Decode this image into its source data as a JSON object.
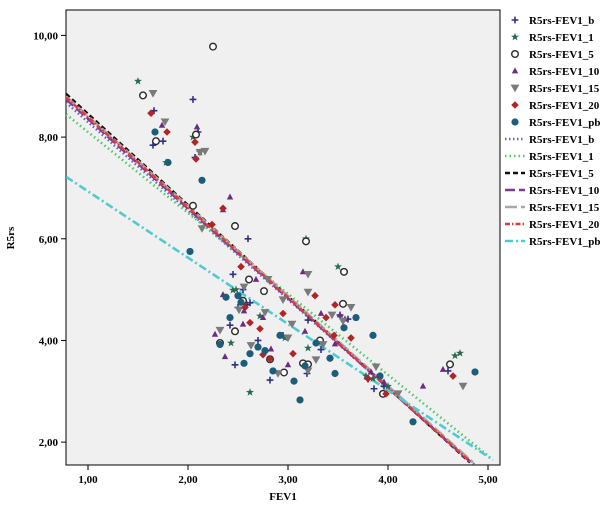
{
  "chart_data": {
    "type": "scatter",
    "xlabel": "FEV1",
    "ylabel": "R5rs",
    "xlim": [
      0.78,
      5.12
    ],
    "ylim": [
      1.55,
      10.5
    ],
    "x_ticks": [
      1,
      2,
      3,
      4,
      5
    ],
    "x_tick_labels": [
      "1,00",
      "2,00",
      "3,00",
      "4,00",
      "5,00"
    ],
    "y_ticks": [
      2,
      4,
      6,
      8,
      10
    ],
    "y_tick_labels": [
      "2,00",
      "4,00",
      "6,00",
      "8,00",
      "10,00"
    ],
    "grid": false,
    "legend_position": "right",
    "plot_background": "#f0f0f0",
    "series": [
      {
        "name": "R5rs-FEV1_b",
        "marker": "plus",
        "color": "#2e2f85",
        "points": [
          [
            1.66,
            8.52
          ],
          [
            2.05,
            8.74
          ],
          [
            2.07,
            7.6
          ],
          [
            2.1,
            8.1
          ],
          [
            1.75,
            7.92
          ],
          [
            1.65,
            7.84
          ],
          [
            2.45,
            5.3
          ],
          [
            2.42,
            4.3
          ],
          [
            2.47,
            3.52
          ],
          [
            2.59,
            4.7
          ],
          [
            2.62,
            4.74
          ],
          [
            2.5,
            4.65
          ],
          [
            2.7,
            4.0
          ],
          [
            2.82,
            3.22
          ],
          [
            2.6,
            6.0
          ],
          [
            2.95,
            4.1
          ],
          [
            3.19,
            3.35
          ],
          [
            3.2,
            4.4
          ],
          [
            3.33,
            3.82
          ],
          [
            3.52,
            4.5
          ],
          [
            3.6,
            4.42
          ],
          [
            3.8,
            3.24
          ],
          [
            3.86,
            3.05
          ],
          [
            3.96,
            3.1
          ],
          [
            4.6,
            3.4
          ],
          [
            2.55,
            5.0
          ]
        ]
      },
      {
        "name": "R5rs-FEV1_1",
        "marker": "star",
        "color": "#2a6a50",
        "points": [
          [
            1.5,
            9.1
          ],
          [
            1.78,
            7.5
          ],
          [
            2.05,
            8.0
          ],
          [
            2.12,
            7.7
          ],
          [
            2.62,
            2.98
          ],
          [
            2.43,
            3.95
          ],
          [
            2.45,
            4.99
          ],
          [
            2.48,
            5.0
          ],
          [
            3.18,
            6.0
          ],
          [
            3.2,
            3.85
          ],
          [
            3.5,
            5.45
          ],
          [
            3.78,
            3.3
          ],
          [
            3.85,
            3.25
          ],
          [
            4.0,
            3.1
          ],
          [
            4.67,
            3.7
          ],
          [
            4.72,
            3.75
          ],
          [
            2.97,
            4.05
          ],
          [
            2.72,
            4.48
          ]
        ]
      },
      {
        "name": "R5rs-FEV1_5",
        "marker": "circle",
        "color": "#2b2b2b",
        "points": [
          [
            2.25,
            9.78
          ],
          [
            1.55,
            8.82
          ],
          [
            1.68,
            7.92
          ],
          [
            2.08,
            8.05
          ],
          [
            2.05,
            6.65
          ],
          [
            2.47,
            6.25
          ],
          [
            2.32,
            3.95
          ],
          [
            2.47,
            4.18
          ],
          [
            2.55,
            4.78
          ],
          [
            2.61,
            5.2
          ],
          [
            2.76,
            4.97
          ],
          [
            2.82,
            3.63
          ],
          [
            2.96,
            3.37
          ],
          [
            3.18,
            5.95
          ],
          [
            3.15,
            3.55
          ],
          [
            3.32,
            4.0
          ],
          [
            3.56,
            5.35
          ],
          [
            3.55,
            4.72
          ],
          [
            3.95,
            2.95
          ],
          [
            4.62,
            3.53
          ],
          [
            3.2,
            3.53
          ]
        ]
      },
      {
        "name": "R5rs-FEV1_10",
        "marker": "triangle-up",
        "color": "#6b2d82",
        "points": [
          [
            1.74,
            8.23
          ],
          [
            2.09,
            8.2
          ],
          [
            2.35,
            6.57
          ],
          [
            2.42,
            6.82
          ],
          [
            2.35,
            4.9
          ],
          [
            2.37,
            3.68
          ],
          [
            2.55,
            4.32
          ],
          [
            2.68,
            5.2
          ],
          [
            2.75,
            4.45
          ],
          [
            2.83,
            3.83
          ],
          [
            3.0,
            3.52
          ],
          [
            3.15,
            5.35
          ],
          [
            3.17,
            4.18
          ],
          [
            3.33,
            4.53
          ],
          [
            3.47,
            3.93
          ],
          [
            3.52,
            4.5
          ],
          [
            3.57,
            4.42
          ],
          [
            3.83,
            3.38
          ],
          [
            3.96,
            3.18
          ],
          [
            4.35,
            3.1
          ],
          [
            4.55,
            3.43
          ],
          [
            2.56,
            4.58
          ],
          [
            2.27,
            4.12
          ]
        ]
      },
      {
        "name": "R5rs-FEV1_15",
        "marker": "triangle-down",
        "color": "#7a7a7a",
        "points": [
          [
            1.65,
            8.86
          ],
          [
            1.77,
            8.3
          ],
          [
            2.12,
            7.7
          ],
          [
            2.17,
            7.72
          ],
          [
            2.32,
            4.2
          ],
          [
            2.14,
            6.2
          ],
          [
            2.51,
            4.6
          ],
          [
            2.8,
            5.2
          ],
          [
            2.63,
            3.9
          ],
          [
            2.77,
            4.55
          ],
          [
            3.0,
            4.05
          ],
          [
            3.2,
            4.95
          ],
          [
            3.2,
            5.3
          ],
          [
            3.35,
            3.92
          ],
          [
            3.44,
            4.5
          ],
          [
            3.55,
            4.38
          ],
          [
            3.63,
            4.65
          ],
          [
            3.88,
            3.48
          ],
          [
            4.1,
            2.95
          ],
          [
            4.75,
            3.1
          ],
          [
            2.9,
            3.35
          ],
          [
            3.04,
            4.32
          ],
          [
            2.95,
            4.8
          ],
          [
            2.56,
            5.05
          ],
          [
            3.28,
            3.62
          ],
          [
            3.2,
            3.4
          ]
        ]
      },
      {
        "name": "R5rs-FEV1_20",
        "marker": "diamond",
        "color": "#b02525",
        "points": [
          [
            1.63,
            8.47
          ],
          [
            1.79,
            8.1
          ],
          [
            2.08,
            7.57
          ],
          [
            2.07,
            7.9
          ],
          [
            2.35,
            6.6
          ],
          [
            2.24,
            6.28
          ],
          [
            2.53,
            5.45
          ],
          [
            2.62,
            4.35
          ],
          [
            2.72,
            4.23
          ],
          [
            2.75,
            3.72
          ],
          [
            2.82,
            3.64
          ],
          [
            2.95,
            4.53
          ],
          [
            3.05,
            3.74
          ],
          [
            3.27,
            4.88
          ],
          [
            3.38,
            4.45
          ],
          [
            3.46,
            4.1
          ],
          [
            3.63,
            4.05
          ],
          [
            3.8,
            3.25
          ],
          [
            3.98,
            2.95
          ],
          [
            4.65,
            3.3
          ],
          [
            2.57,
            4.65
          ],
          [
            3.47,
            4.7
          ]
        ]
      },
      {
        "name": "R5rs-FEV1_pb",
        "marker": "circle-filled",
        "color": "#1d5d7a",
        "points": [
          [
            1.67,
            8.1
          ],
          [
            1.8,
            7.5
          ],
          [
            2.02,
            5.75
          ],
          [
            2.14,
            7.15
          ],
          [
            2.32,
            3.92
          ],
          [
            2.38,
            4.85
          ],
          [
            2.42,
            4.45
          ],
          [
            2.5,
            4.88
          ],
          [
            2.56,
            3.55
          ],
          [
            2.62,
            3.74
          ],
          [
            2.7,
            3.87
          ],
          [
            2.77,
            3.8
          ],
          [
            2.85,
            3.4
          ],
          [
            2.92,
            4.1
          ],
          [
            3.06,
            3.2
          ],
          [
            3.12,
            2.83
          ],
          [
            3.17,
            3.5
          ],
          [
            3.28,
            3.95
          ],
          [
            3.42,
            3.65
          ],
          [
            3.47,
            3.35
          ],
          [
            3.56,
            4.25
          ],
          [
            3.68,
            4.45
          ],
          [
            3.85,
            4.1
          ],
          [
            3.92,
            3.3
          ],
          [
            4.25,
            2.4
          ],
          [
            4.87,
            3.38
          ],
          [
            2.53,
            4.75
          ]
        ]
      }
    ],
    "fit_lines": [
      {
        "name": "R5rs-FEV1_b",
        "color": "#6a63c4",
        "dash": "1.5 2.5",
        "points": [
          [
            0.78,
            8.68
          ],
          [
            4.87,
            1.55
          ]
        ]
      },
      {
        "name": "R5rs-FEV1_1",
        "color": "#4fc86a",
        "dash": "1.5 3",
        "points": [
          [
            0.78,
            8.45
          ],
          [
            5.02,
            1.7
          ]
        ]
      },
      {
        "name": "R5rs-FEV1_5",
        "color": "#111111",
        "dash": "5 3",
        "points": [
          [
            0.78,
            8.85
          ],
          [
            4.82,
            1.6
          ]
        ]
      },
      {
        "name": "R5rs-FEV1_10",
        "color": "#7a3a96",
        "dash": "10 4",
        "points": [
          [
            0.78,
            8.75
          ],
          [
            4.83,
            1.6
          ]
        ]
      },
      {
        "name": "R5rs-FEV1_15",
        "color": "#a8a8a8",
        "dash": "12 4",
        "points": [
          [
            0.78,
            8.8
          ],
          [
            4.85,
            1.6
          ]
        ]
      },
      {
        "name": "R5rs-FEV1_20",
        "color": "#e03a3a",
        "dash": "5 2 1.5 2",
        "points": [
          [
            0.78,
            8.78
          ],
          [
            4.83,
            1.6
          ]
        ]
      },
      {
        "name": "R5rs-FEV1_pb",
        "color": "#4ecbd0",
        "dash": "8 3 2 3",
        "points": [
          [
            0.78,
            7.22
          ],
          [
            5.05,
            1.65
          ]
        ]
      }
    ]
  }
}
